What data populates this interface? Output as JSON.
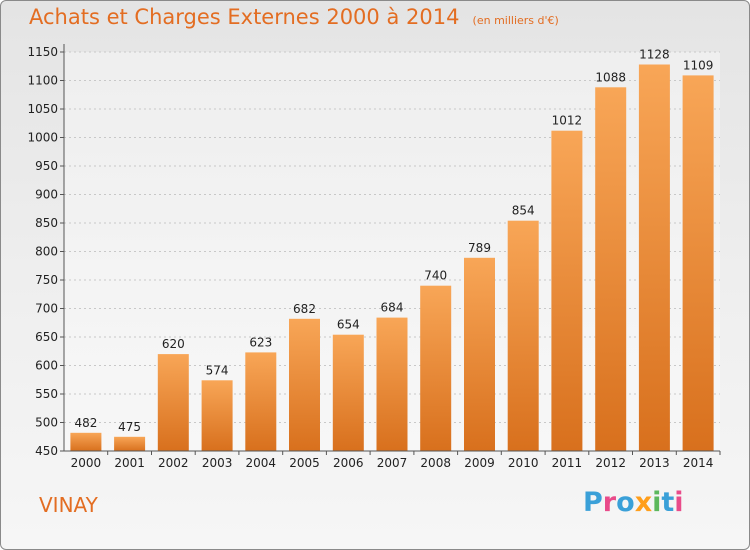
{
  "header": {
    "title": "Achats et Charges Externes 2000 à 2014",
    "unit": "(en milliers d'€)"
  },
  "footer": {
    "town": "VINAY",
    "brand": "Proxiti",
    "brand_colors": [
      "#3aa0d8",
      "#e94b8a",
      "#3aa0d8",
      "#ff9e1b",
      "#5cb85c",
      "#3aa0d8",
      "#e94b8a"
    ]
  },
  "chart_data": {
    "type": "bar",
    "title": "Achats et Charges Externes 2000 à 2014",
    "subtitle": "(en milliers d'€)",
    "categories": [
      "2000",
      "2001",
      "2002",
      "2003",
      "2004",
      "2005",
      "2006",
      "2007",
      "2008",
      "2009",
      "2010",
      "2011",
      "2012",
      "2013",
      "2014"
    ],
    "values": [
      482,
      475,
      620,
      574,
      623,
      682,
      654,
      684,
      740,
      789,
      854,
      1012,
      1088,
      1128,
      1109
    ],
    "yticks": [
      450,
      500,
      550,
      600,
      650,
      700,
      750,
      800,
      850,
      900,
      950,
      1000,
      1050,
      1100,
      1150
    ],
    "ylim": [
      450,
      1150
    ],
    "xlabel": "",
    "ylabel": "",
    "grid": true,
    "bar_color": "#f0862a"
  }
}
